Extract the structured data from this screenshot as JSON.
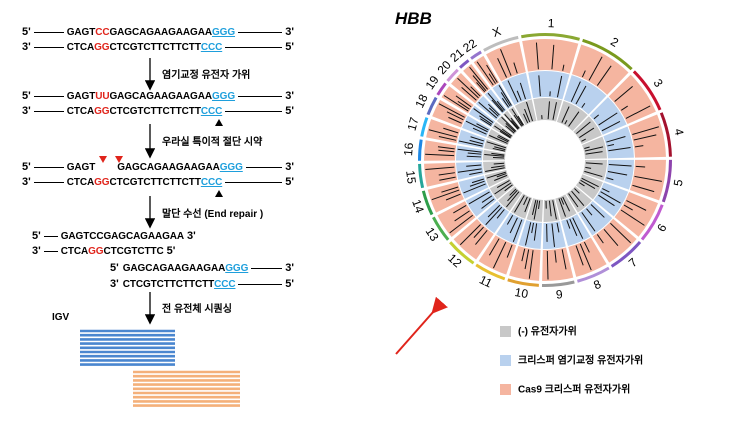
{
  "left": {
    "strands": [
      {
        "start": "5'",
        "segments": [
          {
            "text": "GAGT"
          },
          {
            "text": "CC",
            "color": "red"
          },
          {
            "text": "GAGCAGAAGAAGAA"
          },
          {
            "text": "GGG",
            "color": "blue"
          }
        ],
        "end": "3'"
      },
      {
        "start": "3'",
        "segments": [
          {
            "text": "CTCA"
          },
          {
            "text": "GG",
            "color": "red"
          },
          {
            "text": "CTCGTCTTCTTCTT"
          },
          {
            "text": "CCC",
            "color": "blue"
          }
        ],
        "end": "5'"
      },
      {
        "start": "5'",
        "segments": [
          {
            "text": "GAGT"
          },
          {
            "text": "UU",
            "color": "red"
          },
          {
            "text": "GAGCAGAAGAAGAA"
          },
          {
            "text": "GGG",
            "color": "blue"
          }
        ],
        "end": "3'"
      },
      {
        "start": "3'",
        "segments": [
          {
            "text": "CTCA"
          },
          {
            "text": "GG",
            "color": "red"
          },
          {
            "text": "CTCGTCTTCTTCTT"
          },
          {
            "text": "CCC",
            "color": "blue"
          }
        ],
        "end": "5'"
      },
      {
        "start": "5'",
        "segments": [
          {
            "text": "GAGT"
          },
          {
            "text": "GAGCAGAAGAAGAA"
          },
          {
            "text": "GGG",
            "color": "blue"
          }
        ],
        "end": "3'"
      },
      {
        "start": "3'",
        "segments": [
          {
            "text": "CTCA"
          },
          {
            "text": "GG",
            "color": "red"
          },
          {
            "text": "CTCGTCTTCTTCTT"
          },
          {
            "text": "CCC",
            "color": "blue"
          }
        ],
        "end": "5'"
      },
      {
        "start": "5'",
        "segments": [
          {
            "text": "GAGTCCGAGCAGAAGAA"
          }
        ],
        "end": "3'"
      },
      {
        "start": "3'",
        "segments": [
          {
            "text": "CTCA"
          },
          {
            "text": "GG",
            "color": "red"
          },
          {
            "text": "CTCGTCTTC"
          }
        ],
        "end": "5'"
      },
      {
        "start": "5'",
        "segments": [
          {
            "text": "GAGCAGAAGAAGAA"
          },
          {
            "text": "GGG",
            "color": "blue"
          }
        ],
        "end": "3'"
      },
      {
        "start": "3'",
        "segments": [
          {
            "text": "CTCGTCTTCTTCTT"
          },
          {
            "text": "CCC",
            "color": "blue"
          }
        ],
        "end": "5'"
      }
    ],
    "steps": [
      "염기교정 유전자 가위",
      "우라실 특이적 절단 시약",
      "말단 수선 (End repair )",
      "전 유전체 시퀀싱"
    ],
    "igv": "IGV"
  },
  "right": {
    "title": "HBB",
    "chromosomes": [
      "1",
      "2",
      "3",
      "4",
      "5",
      "6",
      "7",
      "8",
      "9",
      "10",
      "11",
      "12",
      "13",
      "14",
      "15",
      "16",
      "17",
      "18",
      "19",
      "20",
      "21",
      "22",
      "X"
    ],
    "legend": [
      {
        "label": "(-) 유전자가위",
        "color": "#c8c8c8"
      },
      {
        "label": "크리스퍼 염기교정 유전자가위",
        "color": "#b9d1ee"
      },
      {
        "label": "Cas9 크리스퍼 유전자가위",
        "color": "#f5b5a0"
      }
    ]
  }
}
